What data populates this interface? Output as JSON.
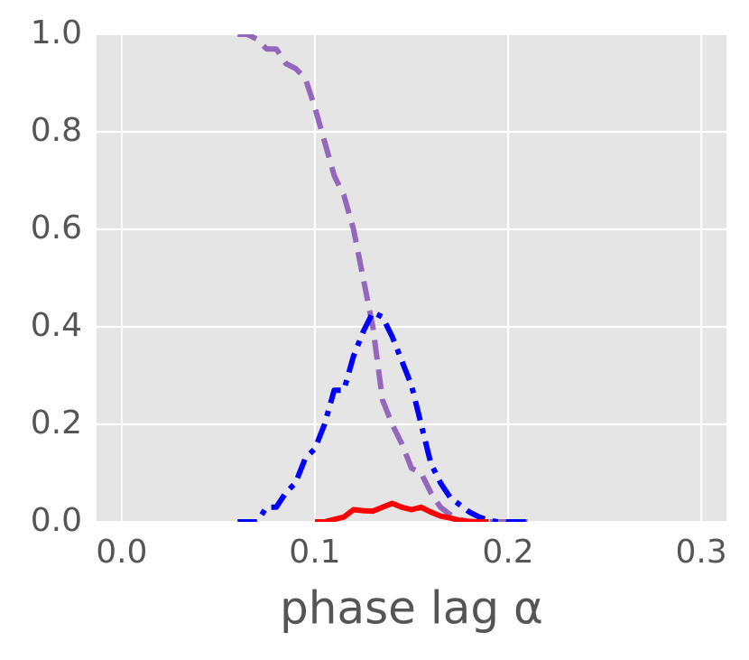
{
  "chart_data": {
    "type": "line",
    "xlabel": "phase lag α",
    "x": [
      0.06,
      0.065,
      0.07,
      0.075,
      0.08,
      0.085,
      0.09,
      0.095,
      0.1,
      0.105,
      0.11,
      0.115,
      0.12,
      0.125,
      0.13,
      0.135,
      0.14,
      0.145,
      0.15,
      0.155,
      0.16,
      0.165,
      0.17,
      0.175,
      0.18,
      0.185,
      0.19,
      0.195,
      0.2,
      0.205,
      0.21
    ],
    "series": [
      {
        "color": "#9467bd",
        "dash": "dashed",
        "values": [
          1.0,
          1.0,
          0.99,
          0.97,
          0.97,
          0.94,
          0.93,
          0.91,
          0.85,
          0.78,
          0.71,
          0.67,
          0.6,
          0.5,
          0.4,
          0.25,
          0.2,
          0.16,
          0.11,
          0.1,
          0.06,
          0.03,
          0.015,
          0.005,
          0,
          0,
          0,
          0,
          0,
          0,
          0
        ]
      },
      {
        "color": "#0000ff",
        "dash": "dashdot",
        "values": [
          0,
          0,
          0,
          0.03,
          0.03,
          0.06,
          0.08,
          0.13,
          0.15,
          0.2,
          0.27,
          0.27,
          0.34,
          0.39,
          0.43,
          0.42,
          0.38,
          0.33,
          0.28,
          0.2,
          0.12,
          0.08,
          0.05,
          0.035,
          0.02,
          0.01,
          0.003,
          0,
          0,
          0,
          0
        ]
      },
      {
        "color": "#ff0000",
        "dash": "solid",
        "values": [
          null,
          null,
          null,
          null,
          null,
          null,
          null,
          null,
          0,
          0,
          0.005,
          0.01,
          0.025,
          0.023,
          0.022,
          0.03,
          0.038,
          0.03,
          0.025,
          0.03,
          0.02,
          0.012,
          0.008,
          0.003,
          0.001,
          0,
          0,
          null,
          null,
          null,
          null
        ]
      }
    ],
    "xlim": [
      -0.013,
      0.313
    ],
    "ylim": [
      0,
      1
    ],
    "xticks": [
      {
        "value": 0,
        "label": "0.0"
      },
      0.1,
      0.2,
      0.3
    ],
    "yticks": [
      {
        "value": 0,
        "label": "0.0"
      },
      0.2,
      0.4,
      0.6,
      0.8,
      {
        "value": 1,
        "label": "1.0"
      }
    ],
    "grid": true
  }
}
